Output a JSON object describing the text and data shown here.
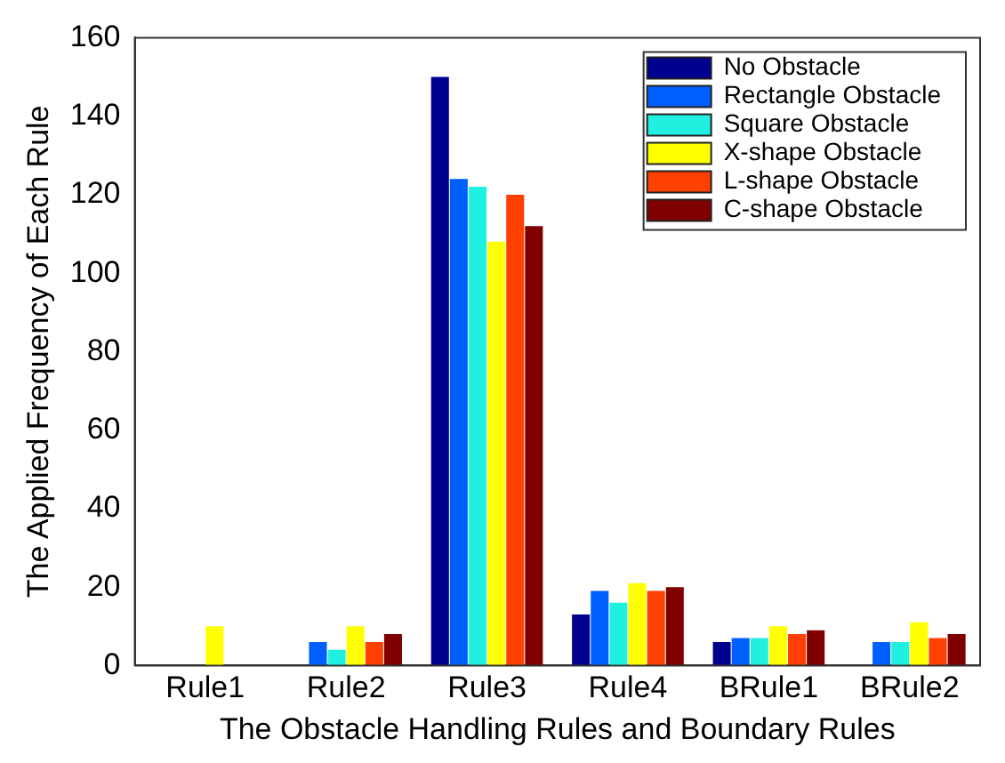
{
  "chart_data": {
    "type": "bar",
    "xlabel": "The Obstacle Handling Rules and Boundary Rules",
    "ylabel": "The Applied Frequency of Each Rule",
    "categories": [
      "Rule1",
      "Rule2",
      "Rule3",
      "Rule4",
      "BRule1",
      "BRule2"
    ],
    "series": [
      {
        "name": "No Obstacle",
        "color": "#00008f",
        "values": [
          0,
          0,
          150,
          13,
          6,
          0
        ]
      },
      {
        "name": "Rectangle Obstacle",
        "color": "#0060ff",
        "values": [
          0,
          6,
          124,
          19,
          7,
          6
        ]
      },
      {
        "name": "Square Obstacle",
        "color": "#20f0e0",
        "values": [
          0,
          4,
          122,
          16,
          7,
          6
        ]
      },
      {
        "name": "X-shape Obstacle",
        "color": "#ffff00",
        "values": [
          10,
          10,
          108,
          21,
          10,
          11
        ]
      },
      {
        "name": "L-shape Obstacle",
        "color": "#ff4000",
        "values": [
          0,
          6,
          120,
          19,
          8,
          7
        ]
      },
      {
        "name": "C-shape Obstacle",
        "color": "#800000",
        "values": [
          0,
          8,
          112,
          20,
          9,
          8
        ]
      }
    ],
    "ylim": [
      0,
      160
    ],
    "yticks": [
      0,
      20,
      40,
      60,
      80,
      100,
      120,
      140,
      160
    ],
    "grid": false,
    "legend": "top right"
  }
}
